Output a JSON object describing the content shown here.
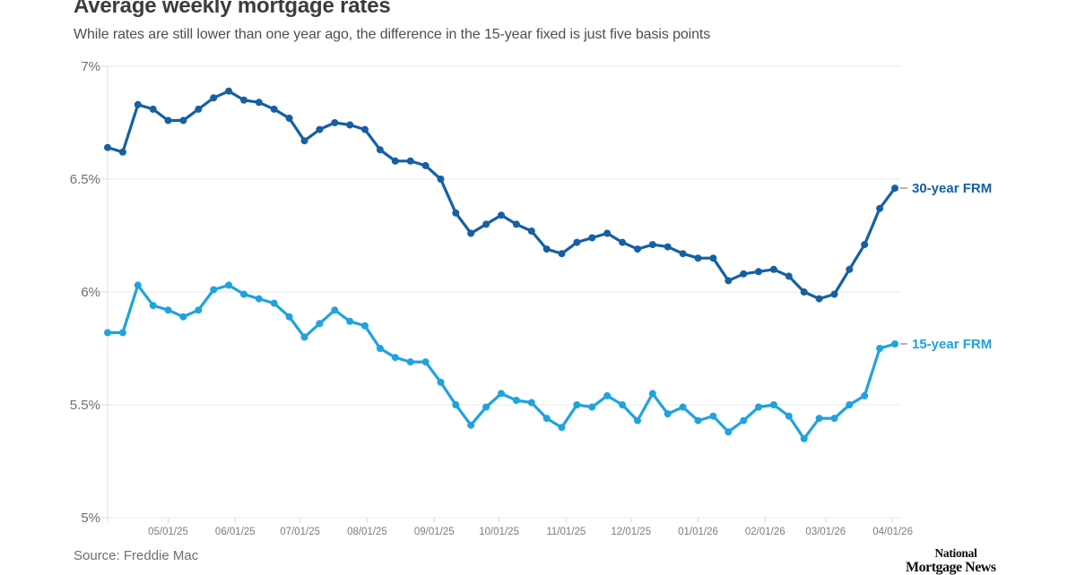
{
  "header": {
    "title": "Average weekly mortgage rates",
    "subtitle": "While rates are still lower than one year ago, the difference in the 15-year fixed is just five basis points"
  },
  "footer": {
    "source": "Source: Freddie Mac",
    "logo_line1": "National",
    "logo_line2": "Mortgage News"
  },
  "colors": {
    "series_30yr": "#1560A3",
    "series_15yr": "#20A3DC",
    "grid": "#eaeaea",
    "axis": "#e2e2e2",
    "tick": "#d9d9d9",
    "label_dash": "#9b9b9b",
    "axis_text": "#6f6f6f",
    "x_axis_text": "#7d7d7d"
  },
  "chart_data": {
    "type": "line",
    "title": "Average weekly mortgage rates",
    "xlabel": "",
    "ylabel": "",
    "ylim": [
      5,
      7
    ],
    "grid": "horizontal",
    "legend_position": "end-of-line-labels",
    "start_date": "04/03/25",
    "end_date": "04/02/26",
    "x_ticks": [
      "05/01/25",
      "06/01/25",
      "07/01/25",
      "08/01/25",
      "09/01/25",
      "10/01/25",
      "11/01/25",
      "12/01/25",
      "01/01/26",
      "02/01/26",
      "03/01/26",
      "04/01/26"
    ],
    "y_ticks": [
      {
        "value": 7.0,
        "label": "7%"
      },
      {
        "value": 6.5,
        "label": "6.5%"
      },
      {
        "value": 6.0,
        "label": "6%"
      },
      {
        "value": 5.5,
        "label": "5.5%"
      },
      {
        "value": 5.0,
        "label": "5%"
      }
    ],
    "dates": [
      "04/03/25",
      "04/10/25",
      "04/17/25",
      "04/24/25",
      "05/01/25",
      "05/08/25",
      "05/15/25",
      "05/22/25",
      "05/29/25",
      "06/05/25",
      "06/12/25",
      "06/19/25",
      "06/26/25",
      "07/03/25",
      "07/10/25",
      "07/17/25",
      "07/24/25",
      "07/31/25",
      "08/07/25",
      "08/14/25",
      "08/21/25",
      "08/28/25",
      "09/04/25",
      "09/11/25",
      "09/18/25",
      "09/25/25",
      "10/02/25",
      "10/09/25",
      "10/16/25",
      "10/23/25",
      "10/30/25",
      "11/06/25",
      "11/13/25",
      "11/20/25",
      "11/26/25",
      "12/04/25",
      "12/11/25",
      "12/18/25",
      "12/24/25",
      "12/31/25",
      "01/08/26",
      "01/15/26",
      "01/22/26",
      "01/29/26",
      "02/05/26",
      "02/12/26",
      "02/19/26",
      "02/26/26",
      "03/05/26",
      "03/12/26",
      "03/19/26",
      "03/26/26",
      "04/02/26"
    ],
    "series": [
      {
        "name": "30-year FRM",
        "color": "#1560A3",
        "values": [
          6.64,
          6.62,
          6.83,
          6.81,
          6.76,
          6.76,
          6.81,
          6.86,
          6.89,
          6.85,
          6.84,
          6.81,
          6.77,
          6.67,
          6.72,
          6.75,
          6.74,
          6.72,
          6.63,
          6.58,
          6.58,
          6.56,
          6.5,
          6.35,
          6.26,
          6.3,
          6.34,
          6.3,
          6.27,
          6.19,
          6.17,
          6.22,
          6.24,
          6.26,
          6.22,
          6.19,
          6.21,
          6.2,
          6.17,
          6.15,
          6.15,
          6.05,
          6.08,
          6.09,
          6.1,
          6.07,
          6.0,
          5.97,
          5.99,
          6.1,
          6.21,
          6.37,
          6.46
        ]
      },
      {
        "name": "15-year FRM",
        "color": "#20A3DC",
        "values": [
          5.82,
          5.82,
          6.03,
          5.94,
          5.92,
          5.89,
          5.92,
          6.01,
          6.03,
          5.99,
          5.97,
          5.95,
          5.89,
          5.8,
          5.86,
          5.92,
          5.87,
          5.85,
          5.75,
          5.71,
          5.69,
          5.69,
          5.6,
          5.5,
          5.41,
          5.49,
          5.55,
          5.52,
          5.51,
          5.44,
          5.4,
          5.5,
          5.49,
          5.54,
          5.5,
          5.43,
          5.55,
          5.46,
          5.49,
          5.43,
          5.45,
          5.38,
          5.43,
          5.49,
          5.5,
          5.45,
          5.35,
          5.44,
          5.44,
          5.5,
          5.54,
          5.75,
          5.77
        ]
      }
    ]
  }
}
